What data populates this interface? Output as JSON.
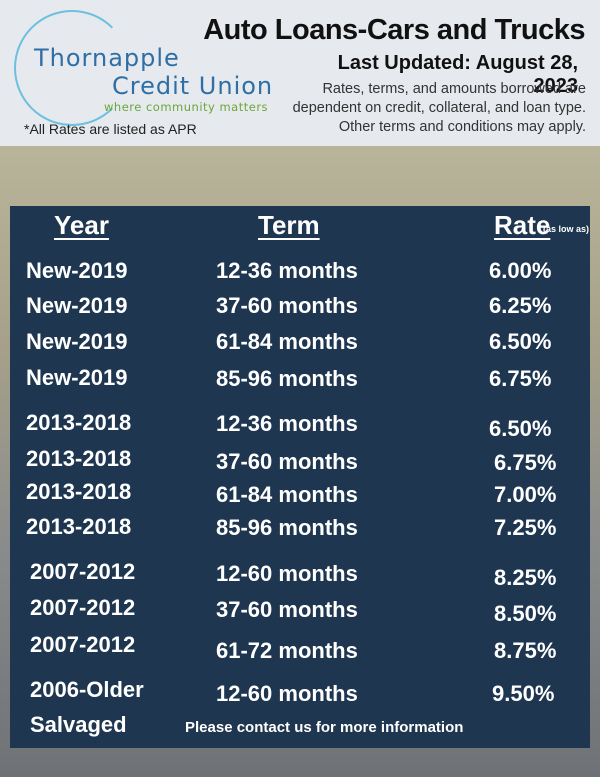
{
  "header": {
    "logo_line1": "Thornapple",
    "logo_line2": "Credit Union",
    "logo_tagline": "where community matters",
    "apr_note": "*All Rates are listed as APR",
    "title": "Auto Loans-Cars and Trucks",
    "last_updated": "Last Updated: August 28, 2023",
    "disclaimer": "Rates, terms, and amounts borrowed are dependent on credit, collateral, and loan type. Other terms and conditions may apply."
  },
  "table": {
    "col_year": "Year",
    "col_term": "Term",
    "col_rate": "Rate",
    "col_rate_note": "(as low as)",
    "rows": [
      {
        "year": "New-2019",
        "term": "12-36 months",
        "rate": "6.00%"
      },
      {
        "year": "New-2019",
        "term": "37-60 months",
        "rate": "6.25%"
      },
      {
        "year": "New-2019",
        "term": "61-84 months",
        "rate": "6.50%"
      },
      {
        "year": "New-2019",
        "term": "85-96 months",
        "rate": "6.75%"
      },
      {
        "year": "2013-2018",
        "term": "12-36 months",
        "rate": "6.50%"
      },
      {
        "year": "2013-2018",
        "term": "37-60 months",
        "rate": "6.75%"
      },
      {
        "year": "2013-2018",
        "term": "61-84 months",
        "rate": "7.00%"
      },
      {
        "year": "2013-2018",
        "term": "85-96 months",
        "rate": "7.25%"
      },
      {
        "year": "2007-2012",
        "term": "12-60 months",
        "rate": "8.25%"
      },
      {
        "year": "2007-2012",
        "term": "37-60 months",
        "rate": "8.50%"
      },
      {
        "year": "2007-2012",
        "term": "61-72 months",
        "rate": "8.75%"
      },
      {
        "year": "2006-Older",
        "term": "12-60 months",
        "rate": "9.50%"
      }
    ],
    "salvaged_label": "Salvaged",
    "salvaged_note": "Please contact us for more information"
  }
}
